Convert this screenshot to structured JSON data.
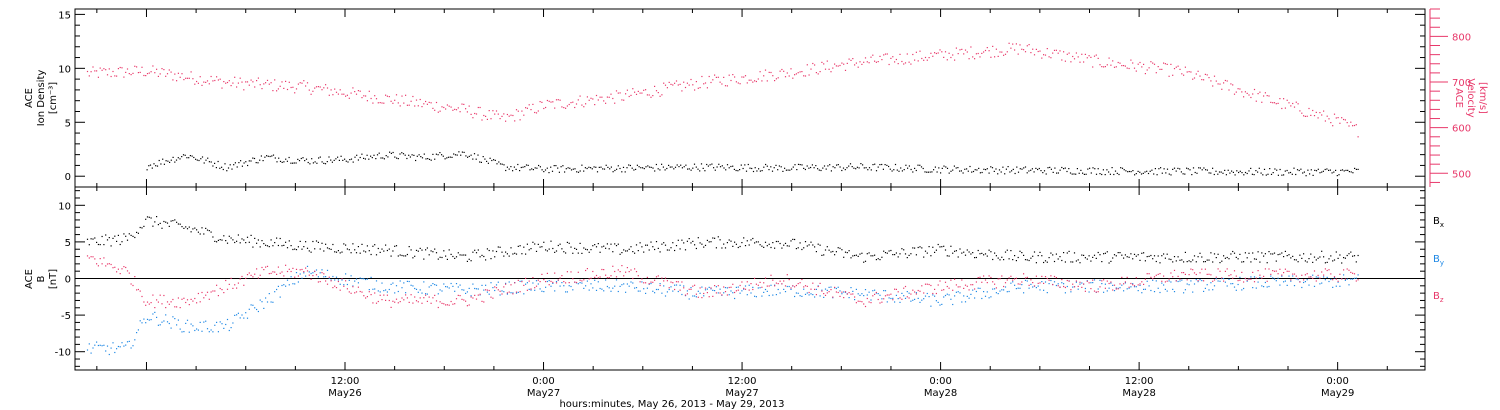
{
  "colors": {
    "axes": "#000000",
    "density": "#000000",
    "velocity": "#e8386a",
    "bx": "#000000",
    "by": "#1e88e5",
    "bz": "#e8386a"
  },
  "xaxis": {
    "ticks": [
      {
        "t": 0.5,
        "time": "12:00",
        "date": "May26"
      },
      {
        "t": 1.0,
        "time": "0:00",
        "date": "May27"
      },
      {
        "t": 1.5,
        "time": "12:00",
        "date": "May27"
      },
      {
        "t": 2.0,
        "time": "0:00",
        "date": "May28"
      },
      {
        "t": 2.5,
        "time": "12:00",
        "date": "May28"
      },
      {
        "t": 3.0,
        "time": "0:00",
        "date": "May29"
      }
    ],
    "label": "hours:minutes, May 26, 2013 - May 29, 2013"
  },
  "panel1": {
    "left_label": [
      "ACE",
      "Ion Density",
      "[cm⁻³]"
    ],
    "left_ticks": [
      0,
      5,
      10,
      15
    ],
    "right_label": [
      "ACE",
      "Velocity",
      "[km/s]"
    ],
    "right_ticks": [
      500,
      600,
      700,
      800
    ]
  },
  "panel2": {
    "left_label": [
      "ACE",
      "B",
      "[nT]"
    ],
    "left_ticks": [
      -10,
      -5,
      0,
      5,
      10
    ],
    "legend": [
      {
        "base": "B",
        "sub": "x",
        "color": "#000000"
      },
      {
        "base": "B",
        "sub": "y",
        "color": "#1e88e5"
      },
      {
        "base": "B",
        "sub": "z",
        "color": "#e8386a"
      }
    ]
  },
  "chart_data": [
    {
      "type": "scatter",
      "title": "",
      "x_unit": "days since May 26, 2013 00:00",
      "xlim": [
        -0.18,
        3.22
      ],
      "ylim_left": [
        -1,
        15.5
      ],
      "ylim_right": [
        470,
        860
      ],
      "series": [
        {
          "name": "Ion Density",
          "axis": "left",
          "x": [
            0.0,
            0.1,
            0.2,
            0.3,
            0.4,
            0.5,
            0.6,
            0.7,
            0.8,
            0.9,
            1.0,
            1.2,
            1.4,
            1.6,
            1.8,
            2.0,
            2.2,
            2.4,
            2.6,
            2.8,
            3.0,
            3.05
          ],
          "y": [
            1.0,
            2.0,
            0.9,
            1.8,
            1.5,
            1.6,
            2.0,
            1.8,
            2.2,
            0.9,
            0.7,
            0.8,
            0.9,
            0.8,
            0.9,
            0.7,
            0.6,
            0.55,
            0.5,
            0.45,
            0.45,
            0.5
          ]
        },
        {
          "name": "Velocity",
          "axis": "right",
          "x": [
            -0.15,
            0.0,
            0.2,
            0.4,
            0.6,
            0.8,
            0.9,
            1.0,
            1.2,
            1.4,
            1.6,
            1.8,
            2.0,
            2.2,
            2.4,
            2.6,
            2.8,
            3.0,
            3.05
          ],
          "y": [
            720,
            725,
            700,
            690,
            665,
            640,
            620,
            650,
            670,
            700,
            720,
            745,
            760,
            775,
            745,
            725,
            670,
            615,
            595
          ]
        }
      ]
    },
    {
      "type": "scatter",
      "title": "",
      "x_unit": "days since May 26, 2013 00:00",
      "xlim": [
        -0.18,
        3.22
      ],
      "ylim": [
        -12.5,
        12.5
      ],
      "series": [
        {
          "name": "Bx",
          "x": [
            -0.15,
            -0.05,
            0.0,
            0.1,
            0.2,
            0.3,
            0.4,
            0.6,
            0.8,
            1.0,
            1.2,
            1.4,
            1.6,
            1.8,
            2.0,
            2.2,
            2.4,
            2.6,
            2.8,
            3.0,
            3.05
          ],
          "y": [
            5,
            5.5,
            8,
            7,
            5.5,
            5,
            4.5,
            4,
            3,
            4.5,
            4,
            5,
            5,
            3,
            4,
            3,
            3,
            3,
            3,
            3,
            3
          ]
        },
        {
          "name": "By",
          "x": [
            -0.15,
            -0.05,
            0.0,
            0.1,
            0.2,
            0.3,
            0.4,
            0.6,
            0.8,
            1.0,
            1.2,
            1.4,
            1.6,
            1.8,
            2.0,
            2.2,
            2.4,
            2.6,
            2.8,
            3.0,
            3.05
          ],
          "y": [
            -9.5,
            -9.5,
            -5,
            -6.5,
            -6.5,
            -3,
            1,
            -1,
            -1.5,
            -1,
            -1,
            -2,
            -1.5,
            -2,
            -3,
            -1,
            -1,
            -1,
            -0.5,
            -0.3,
            -0.2
          ]
        },
        {
          "name": "Bz",
          "x": [
            -0.15,
            -0.05,
            0.0,
            0.1,
            0.2,
            0.3,
            0.4,
            0.6,
            0.8,
            1.0,
            1.2,
            1.4,
            1.6,
            1.8,
            2.0,
            2.2,
            2.4,
            2.6,
            2.8,
            3.0,
            3.05
          ],
          "y": [
            3,
            1,
            -3,
            -3,
            -1,
            1,
            1,
            -3,
            -3,
            0,
            1,
            -2,
            0,
            -3,
            -1,
            0,
            -1,
            0.5,
            0.5,
            0.5,
            0.5
          ]
        }
      ]
    }
  ]
}
